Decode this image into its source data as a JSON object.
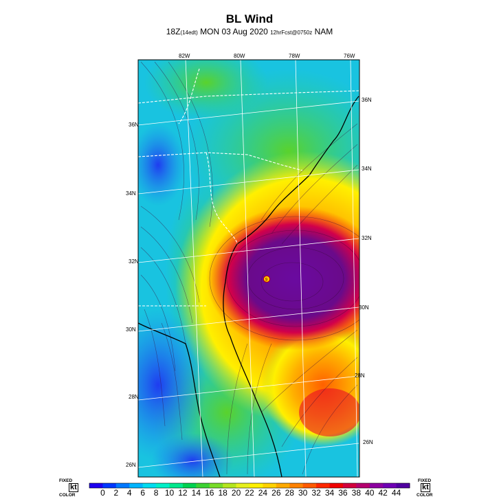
{
  "header": {
    "title": "BL Wind",
    "sub_time": "18Z",
    "sub_local": "(14edt)",
    "sub_date": "MON 03 Aug 2020",
    "sub_fcst": "12hrFcst@0750z",
    "sub_model": "NAM"
  },
  "map": {
    "top_lon_labels": [
      "82W",
      "80W",
      "78W",
      "76W"
    ],
    "left_lat_labels": [
      "36N",
      "34N",
      "32N",
      "30N",
      "28N",
      "26N"
    ],
    "right_lat_labels": [
      "36N",
      "34N",
      "32N",
      "30N",
      "28N",
      "26N"
    ],
    "storm_center_marker": "9",
    "colors": {
      "calm": "#0a4cf5",
      "light": "#16b8f0",
      "moderate": "#2fd27a",
      "fresh": "#d9e81e",
      "strong": "#ff8a00",
      "gale": "#e8002a",
      "storm": "#6a0a8a"
    }
  },
  "legend": {
    "left_label_top": "FIXED",
    "left_label_unit": "kt",
    "left_label_bottom": "COLOR",
    "right_label_top": "FIXED",
    "right_label_unit": "kt",
    "right_label_bottom": "COLOR",
    "tick_values": [
      "0",
      "2",
      "4",
      "6",
      "8",
      "10",
      "12",
      "14",
      "16",
      "18",
      "20",
      "22",
      "24",
      "26",
      "28",
      "30",
      "32",
      "34",
      "36",
      "38",
      "40",
      "42",
      "44"
    ],
    "colors": [
      "#1d00f0",
      "#0037ff",
      "#0078ff",
      "#00b4ff",
      "#00dcf0",
      "#00f0c8",
      "#00e88c",
      "#00d250",
      "#3cd232",
      "#78dc28",
      "#b4e61e",
      "#e6f01e",
      "#fff000",
      "#ffd200",
      "#ffaa00",
      "#ff8200",
      "#ff5a00",
      "#ff2800",
      "#f00000",
      "#d2003c",
      "#b4006e",
      "#8c00a0",
      "#6e00b4",
      "#5000a0"
    ]
  }
}
